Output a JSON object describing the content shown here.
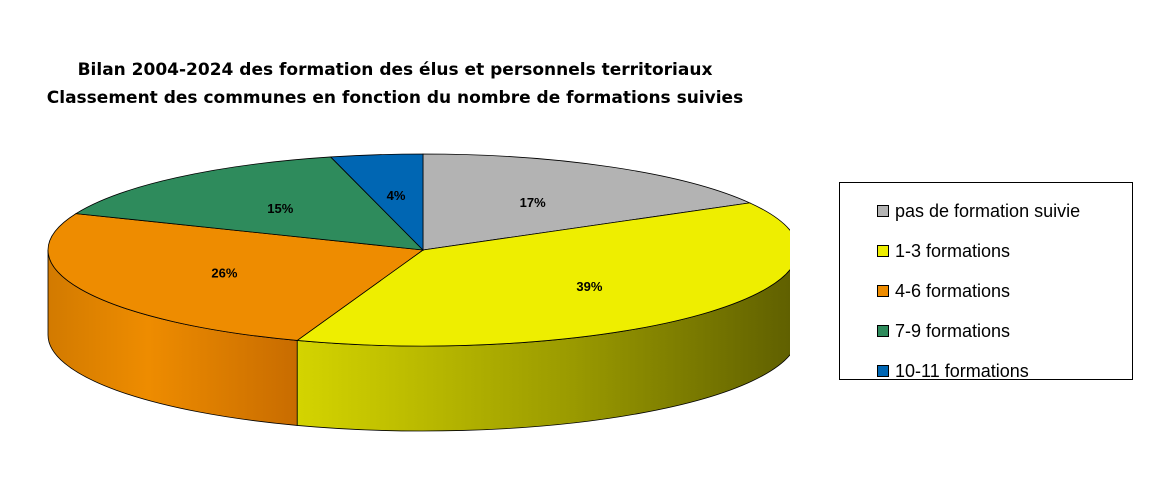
{
  "chart_data": {
    "type": "pie",
    "title": "Bilan 2004-2024 des formation des élus et personnels territoriaux",
    "subtitle": "Classement des communes en fonction du nombre de formations suivies",
    "categories": [
      "pas de formation suivie",
      "1-3 formations",
      "4-6 formations",
      "7-9 formations",
      "10-11 formations"
    ],
    "values": [
      17,
      39,
      26,
      15,
      4
    ],
    "labels": [
      "17%",
      "39%",
      "26%",
      "15%",
      "4%"
    ],
    "colors": [
      "#b3b3b3",
      "#eeee00",
      "#ee8c00",
      "#2e8b5c",
      "#0066b3"
    ],
    "side_colors": [
      "#8a8a8a",
      "#666600",
      "#cc7000",
      "#1f6a44",
      "#004a85"
    ],
    "legend": "right",
    "style": "3d-tilted"
  }
}
